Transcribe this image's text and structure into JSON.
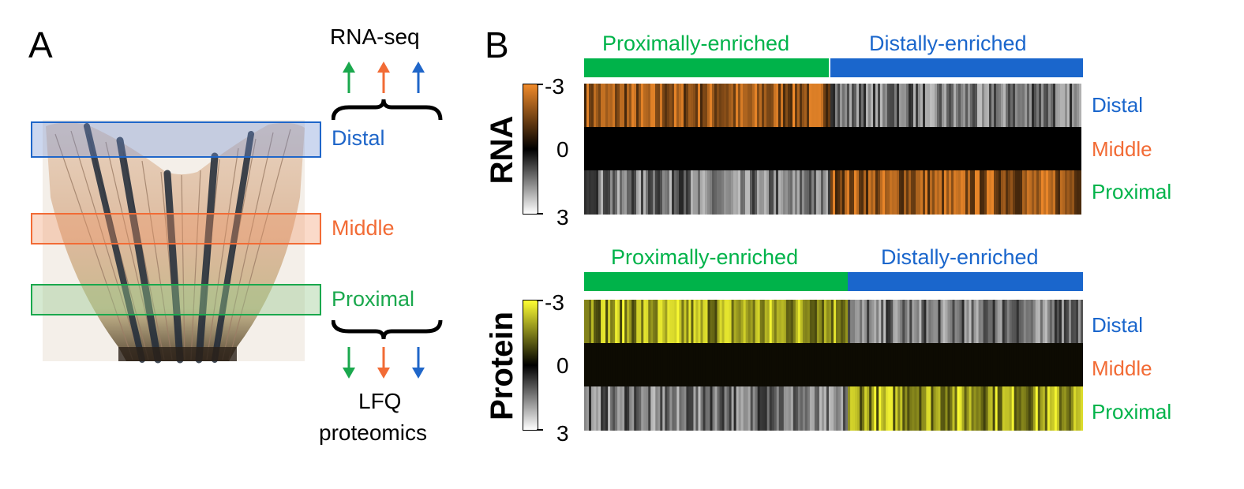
{
  "panel_a": {
    "letter": "A",
    "top_label": "RNA-seq",
    "bottom_label_1": "LFQ",
    "bottom_label_2": "proteomics",
    "regions": [
      {
        "label": "Distal",
        "color": "#1f66c9"
      },
      {
        "label": "Middle",
        "color": "#f26b35"
      },
      {
        "label": "Proximal",
        "color": "#1aa84d"
      }
    ],
    "arrow_colors": [
      "#1aa84d",
      "#f26b35",
      "#1f66c9"
    ]
  },
  "panel_b": {
    "letter": "B",
    "colors": {
      "proximal_bar": "#00b34a",
      "distal_bar": "#1a66cc",
      "rna_high": "#f08a2a",
      "protein_high": "#ffff33"
    },
    "rna": {
      "axis_label": "RNA",
      "group_left": "Proximally-enriched",
      "group_right": "Distally-enriched",
      "scale": {
        "min": "-3",
        "mid": "0",
        "max": "3"
      },
      "rows": [
        "Distal",
        "Middle",
        "Proximal"
      ]
    },
    "protein": {
      "axis_label": "Protein",
      "group_left": "Proximally-enriched",
      "group_right": "Distally-enriched",
      "scale": {
        "min": "-3",
        "mid": "0",
        "max": "3"
      },
      "rows": [
        "Distal",
        "Middle",
        "Proximal"
      ]
    }
  }
}
